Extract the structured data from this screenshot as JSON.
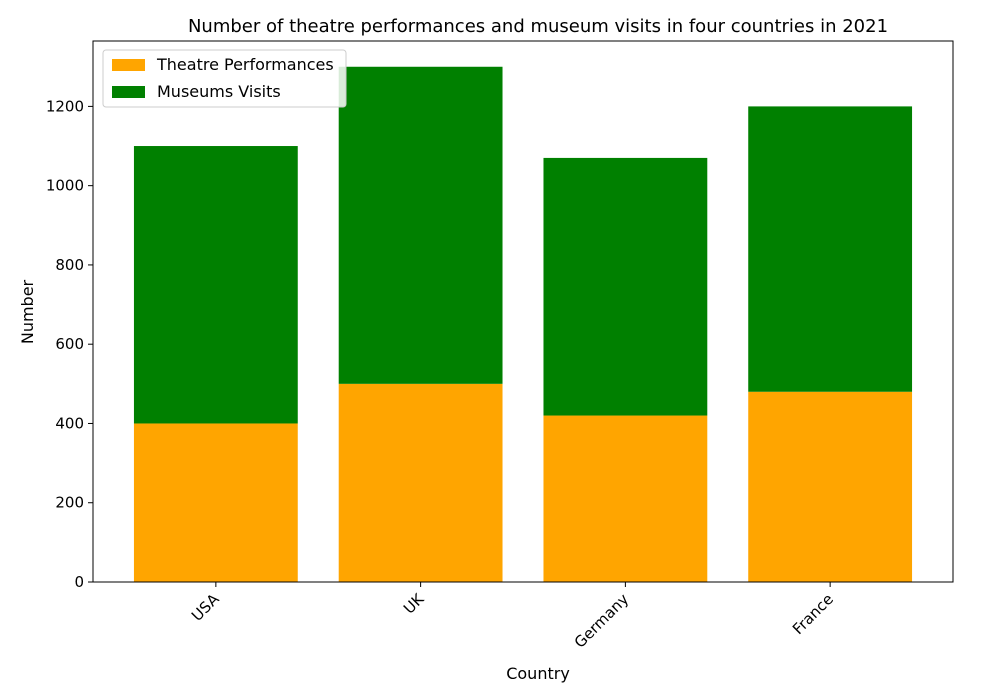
{
  "chart_data": {
    "type": "bar",
    "stacked": true,
    "title": "Number of theatre performances and museum visits in four countries in 2021",
    "xlabel": "Country",
    "ylabel": "Number",
    "categories": [
      "USA",
      "UK",
      "Germany",
      "France"
    ],
    "series": [
      {
        "name": "Theatre Performances",
        "color": "#ffa500",
        "values": [
          400,
          500,
          420,
          480
        ]
      },
      {
        "name": "Museums Visits",
        "color": "#008000",
        "values": [
          700,
          800,
          650,
          720
        ]
      }
    ],
    "ylim": [
      0,
      1365
    ],
    "yticks": [
      0,
      200,
      400,
      600,
      800,
      1000,
      1200
    ],
    "grid": false,
    "legend_position": "top-left",
    "xtick_rotation": 45
  }
}
